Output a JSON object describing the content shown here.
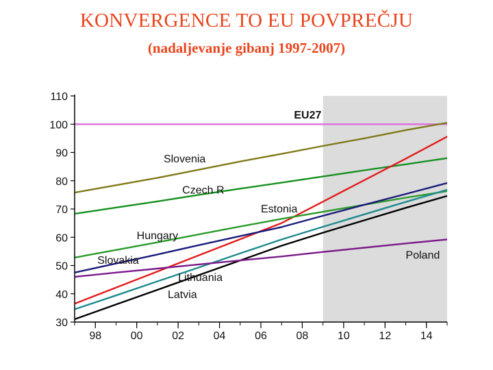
{
  "title": "KONVERGENCE TO EU POVPREČJU",
  "subtitle": "(nadaljevanje gibanj 1997-2007)",
  "colors": {
    "shade": "#dcdcdc",
    "axis": "#000000",
    "grid": "#e6e6e6"
  },
  "chart_data": {
    "type": "line",
    "title": "KONVERGENCE TO EU POVPREČJU",
    "subtitle": "(nadaljevanje gibanj 1997-2007)",
    "xlim": [
      1997,
      2015
    ],
    "ylim": [
      30,
      110
    ],
    "x_ticks": [
      {
        "value": 1998,
        "label": "98"
      },
      {
        "value": 2000,
        "label": "00"
      },
      {
        "value": 2002,
        "label": "02"
      },
      {
        "value": 2004,
        "label": "04"
      },
      {
        "value": 2006,
        "label": "06"
      },
      {
        "value": 2008,
        "label": "08"
      },
      {
        "value": 2010,
        "label": "10"
      },
      {
        "value": 2012,
        "label": "12"
      },
      {
        "value": 2014,
        "label": "14"
      }
    ],
    "y_ticks": [
      30,
      40,
      50,
      60,
      70,
      80,
      90,
      100,
      110
    ],
    "shaded_region": [
      2009,
      2015
    ],
    "grid": false,
    "legend": "inline labels",
    "x": [
      1997,
      1999,
      2001,
      2003,
      2005,
      2007,
      2009,
      2011,
      2013,
      2015
    ],
    "series": [
      {
        "name": "EU27",
        "color": "#de6bde",
        "values": [
          100,
          100,
          100,
          100,
          100,
          100,
          100,
          100,
          100,
          100
        ],
        "label_at": [
          2007.6,
          102
        ]
      },
      {
        "name": "Slovenia",
        "color": "#7f7a18",
        "values": [
          75.8,
          78.4,
          81.0,
          83.9,
          86.8,
          89.5,
          92.3,
          95.0,
          97.9,
          100.5
        ],
        "label_at": [
          2001.3,
          86.5
        ]
      },
      {
        "name": "Czech R",
        "color": "#159020",
        "values": [
          68.3,
          70.5,
          72.7,
          75.0,
          77.2,
          79.3,
          81.5,
          83.7,
          85.8,
          88.0
        ],
        "label_at": [
          2002.2,
          75.5
        ]
      },
      {
        "name": "Estonia",
        "color": "#e21c1c",
        "values": [
          36.5,
          42.2,
          47.9,
          53.6,
          59.3,
          65.0,
          72.6,
          80.2,
          87.8,
          95.6
        ],
        "label_at": [
          2006.0,
          68.8
        ]
      },
      {
        "name": "Hungary",
        "color": "#2a9a2a",
        "values": [
          52.8,
          55.5,
          58.2,
          61.0,
          63.8,
          66.5,
          69.0,
          71.5,
          74.0,
          76.3
        ],
        "label_at": [
          2000.0,
          59.3
        ]
      },
      {
        "name": "Slovakia",
        "color": "#1a1a7a",
        "values": [
          47.5,
          50.7,
          53.9,
          57.2,
          60.4,
          63.6,
          67.6,
          71.5,
          75.3,
          79.2
        ],
        "label_at": [
          1998.1,
          50.6
        ]
      },
      {
        "name": "Lithuania",
        "color": "#1e8a8e",
        "values": [
          34.5,
          39.4,
          44.4,
          49.3,
          54.3,
          59.2,
          63.7,
          68.1,
          72.5,
          76.8
        ],
        "label_at": [
          2002.0,
          44.6
        ]
      },
      {
        "name": "Latvia",
        "color": "#000000",
        "values": [
          31.0,
          36.2,
          41.4,
          46.6,
          51.8,
          57.0,
          61.6,
          66.0,
          70.4,
          74.6
        ],
        "label_at": [
          2001.5,
          38.5
        ]
      },
      {
        "name": "Poland",
        "color": "#7a1a8a",
        "values": [
          46.0,
          47.5,
          48.9,
          50.4,
          51.8,
          53.2,
          54.8,
          56.3,
          57.8,
          59.2
        ],
        "label_at": [
          2013.0,
          52.4
        ]
      }
    ]
  }
}
